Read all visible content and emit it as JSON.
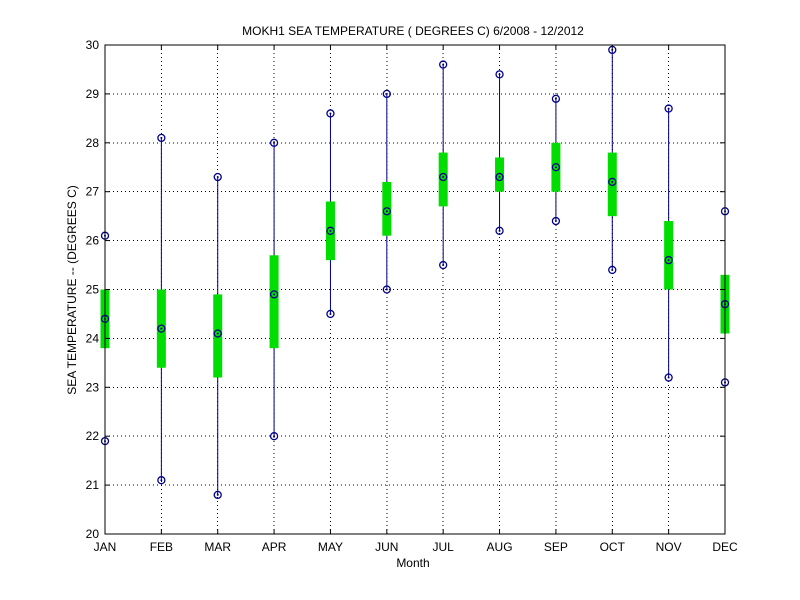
{
  "chart_data": {
    "type": "box",
    "title": "MOKH1  SEA TEMPERATURE ( DEGREES C) 6/2008 - 12/2012",
    "xlabel": "Month",
    "ylabel": "SEA TEMPERATURE -- (DEGREES C)",
    "categories": [
      "JAN",
      "FEB",
      "MAR",
      "APR",
      "MAY",
      "JUN",
      "JUL",
      "AUG",
      "SEP",
      "OCT",
      "NOV",
      "DEC"
    ],
    "ylim": [
      20,
      30
    ],
    "yticks": [
      20,
      21,
      22,
      23,
      24,
      25,
      26,
      27,
      28,
      29,
      30
    ],
    "grid": true,
    "series": [
      {
        "stat": "max",
        "values": [
          26.1,
          28.1,
          27.3,
          28.0,
          28.6,
          29.0,
          29.6,
          29.4,
          28.9,
          29.9,
          28.7,
          26.6
        ]
      },
      {
        "stat": "q3",
        "values": [
          25.0,
          25.0,
          24.9,
          25.7,
          26.8,
          27.2,
          27.8,
          27.7,
          28.0,
          27.8,
          26.4,
          25.3
        ]
      },
      {
        "stat": "mean",
        "values": [
          24.4,
          24.2,
          24.1,
          24.9,
          26.2,
          26.6,
          27.3,
          27.3,
          27.5,
          27.2,
          25.6,
          24.7
        ]
      },
      {
        "stat": "q1",
        "values": [
          23.8,
          23.4,
          23.2,
          23.8,
          25.6,
          26.1,
          26.7,
          27.0,
          27.0,
          26.5,
          25.0,
          24.1
        ]
      },
      {
        "stat": "min",
        "values": [
          21.9,
          21.1,
          20.8,
          22.0,
          24.5,
          25.0,
          25.5,
          26.2,
          26.4,
          25.4,
          23.2,
          23.1
        ]
      }
    ],
    "colors": {
      "whisker": "#00008B",
      "box": "#00DD00",
      "marker": "#00008B",
      "grid": "#000000"
    }
  }
}
